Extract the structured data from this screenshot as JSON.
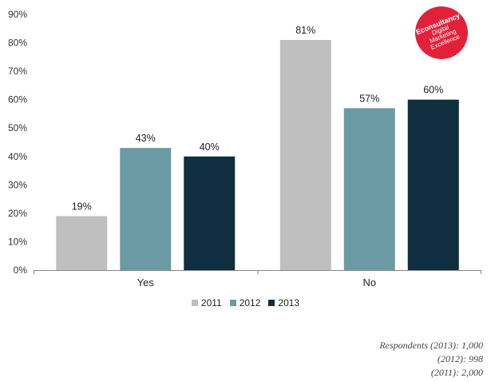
{
  "chart_data": {
    "type": "bar",
    "categories": [
      "Yes",
      "No"
    ],
    "series": [
      {
        "name": "2011",
        "values": [
          19,
          81
        ],
        "color": "#bfbfbf"
      },
      {
        "name": "2012",
        "values": [
          43,
          57
        ],
        "color": "#6a9ba5"
      },
      {
        "name": "2013",
        "values": [
          40,
          60
        ],
        "color": "#0f2e40"
      }
    ],
    "ylim": [
      0,
      90
    ],
    "yticks": [
      0,
      10,
      20,
      30,
      40,
      50,
      60,
      70,
      80,
      90
    ],
    "tick_suffix": "%",
    "grid": false,
    "legend_position": "bottom"
  },
  "logo": {
    "line1": "Econsultancy",
    "line2": "Digital",
    "line3": "Marketing",
    "line4": "Excellence"
  },
  "notes": [
    "Respondents (2013): 1,000",
    "(2012): 998",
    "(2011): 2,000"
  ]
}
